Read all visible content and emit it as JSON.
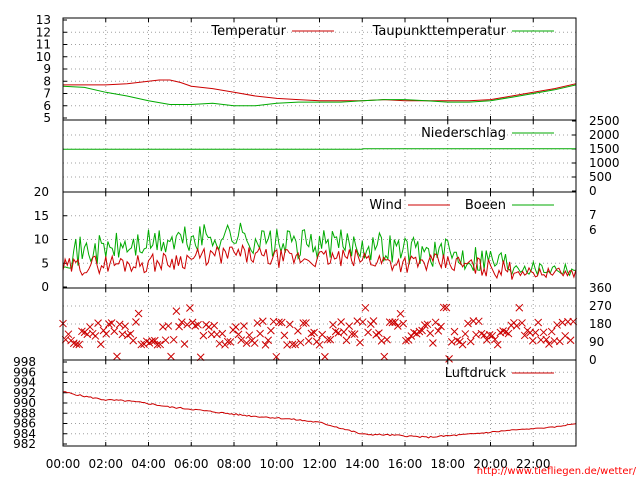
{
  "source_link": "http://www.tiefliegen.de/wetter/",
  "colors": {
    "red": "#cc0000",
    "green": "#00aa00",
    "grid": "#a0a0a0",
    "source": "#ff0000"
  },
  "chart_data": [
    {
      "type": "line",
      "ylim": [
        5,
        13
      ],
      "yticks": [
        "5",
        "6",
        "7",
        "8",
        "9",
        "10",
        "11",
        "12",
        "13"
      ],
      "legend": "top-right",
      "series": [
        {
          "name": "Temperatur",
          "color": "#cc0000",
          "x": [
            0,
            1,
            2,
            3,
            4,
            4.5,
            5,
            5.5,
            6,
            7,
            8,
            9,
            10,
            11,
            12,
            13,
            14,
            15,
            16,
            17,
            18,
            19,
            20,
            21,
            22,
            23,
            24
          ],
          "values": [
            7.7,
            7.7,
            7.7,
            7.8,
            8.0,
            8.1,
            8.1,
            7.9,
            7.6,
            7.4,
            7.1,
            6.8,
            6.6,
            6.5,
            6.4,
            6.4,
            6.4,
            6.5,
            6.4,
            6.4,
            6.4,
            6.4,
            6.5,
            6.8,
            7.1,
            7.4,
            7.8
          ]
        },
        {
          "name": "Taupunkttemperatur",
          "color": "#00aa00",
          "x": [
            0,
            1,
            2,
            3,
            4,
            5,
            6,
            7,
            8,
            9,
            10,
            11,
            12,
            13,
            14,
            15,
            16,
            17,
            18,
            19,
            20,
            21,
            22,
            23,
            24
          ],
          "values": [
            7.6,
            7.5,
            7.1,
            6.8,
            6.4,
            6.1,
            6.1,
            6.2,
            6.0,
            6.0,
            6.2,
            6.3,
            6.3,
            6.3,
            6.4,
            6.5,
            6.5,
            6.4,
            6.3,
            6.3,
            6.4,
            6.7,
            7.0,
            7.3,
            7.7
          ]
        }
      ]
    },
    {
      "type": "line",
      "yticks_right": [
        "0",
        "500",
        "1000",
        "1500",
        "2000",
        "2500"
      ],
      "legend": "top-right",
      "series": [
        {
          "name": "Niederschlag",
          "color": "#00aa00",
          "x": [
            0,
            14,
            14.05,
            24
          ],
          "values": [
            1490,
            1490,
            1510,
            1510
          ]
        }
      ]
    },
    {
      "type": "line",
      "ylim": [
        0,
        20
      ],
      "yticks": [
        "0",
        "5",
        "10",
        "15",
        "20"
      ],
      "yticks_right": [
        "6",
        "7"
      ],
      "legend": "top-right",
      "series": [
        {
          "name": "Wind",
          "color": "#cc0000",
          "x": [
            0,
            2,
            4,
            6,
            8,
            10,
            12,
            14,
            16,
            18,
            20,
            22,
            24
          ],
          "values": [
            4,
            5,
            5,
            6,
            7,
            6,
            6,
            6,
            5,
            5,
            4,
            3,
            3
          ]
        },
        {
          "name": "Boeen",
          "color": "#00aa00",
          "x": [
            0,
            2,
            4,
            6,
            8,
            10,
            12,
            14,
            16,
            18,
            20,
            22,
            24
          ],
          "values": [
            7,
            8,
            9,
            10,
            11,
            9,
            9,
            9,
            8,
            7,
            6,
            4,
            4
          ]
        }
      ]
    },
    {
      "type": "scatter",
      "ylim": [
        0,
        360
      ],
      "yticks_right": [
        "0",
        "90",
        "180",
        "270",
        "360"
      ],
      "series": [
        {
          "name": "",
          "color": "#cc0000",
          "values": [
            90,
            135,
            180
          ]
        }
      ]
    },
    {
      "type": "line",
      "ylim": [
        982,
        998
      ],
      "yticks": [
        "982",
        "984",
        "986",
        "988",
        "990",
        "992",
        "994",
        "996",
        "998"
      ],
      "xticks": [
        "00:00",
        "02:00",
        "04:00",
        "06:00",
        "08:00",
        "10:00",
        "12:00",
        "14:00",
        "16:00",
        "18:00",
        "20:00",
        "22:00"
      ],
      "legend": "top-right",
      "series": [
        {
          "name": "Luftdruck",
          "color": "#cc0000",
          "x": [
            0,
            1,
            2,
            3,
            4,
            5,
            6,
            7,
            8,
            9,
            10,
            11,
            12,
            13,
            14,
            15,
            16,
            17,
            18,
            19,
            20,
            21,
            22,
            23,
            24
          ],
          "values": [
            992.2,
            991.3,
            990.6,
            990.4,
            989.9,
            989.2,
            988.8,
            988.3,
            987.8,
            987.4,
            987.1,
            986.7,
            986.2,
            985.1,
            983.9,
            983.8,
            983.6,
            983.3,
            983.6,
            983.9,
            984.3,
            984.7,
            985.0,
            985.3,
            986.0
          ]
        }
      ]
    }
  ]
}
